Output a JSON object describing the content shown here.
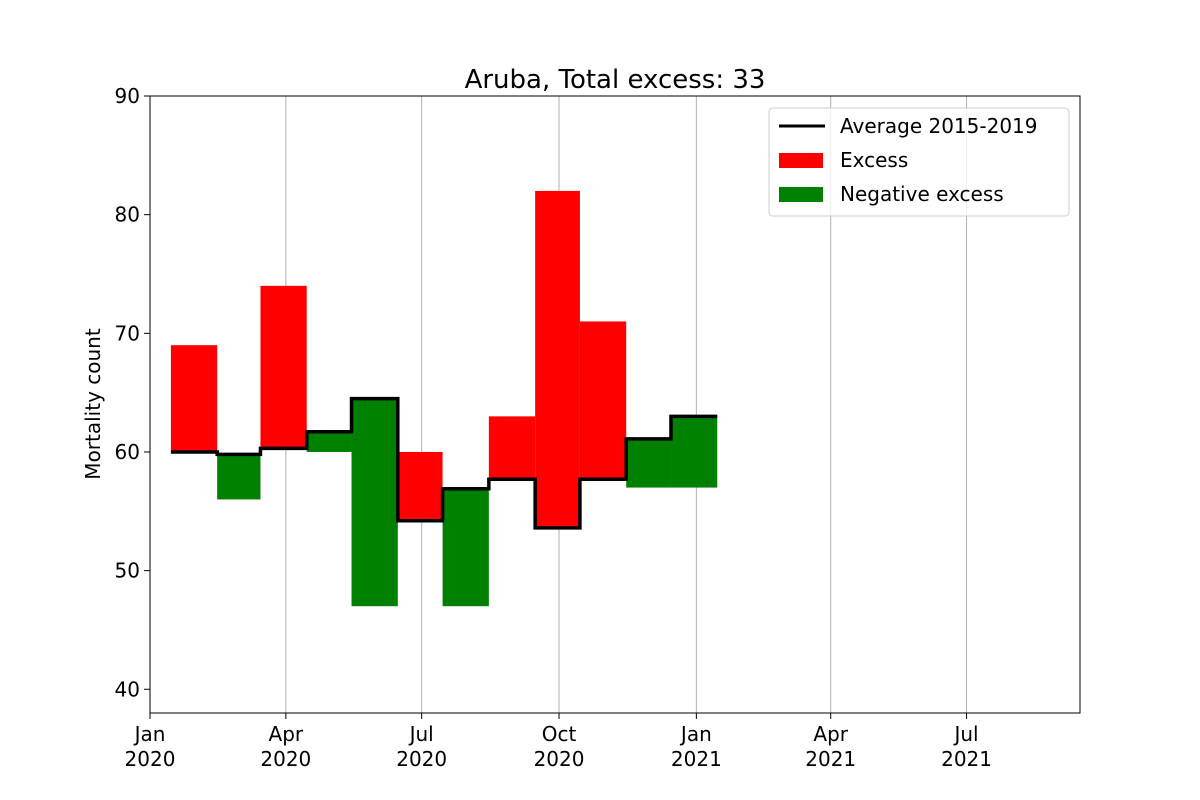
{
  "chart_data": {
    "type": "area",
    "title": "Aruba, Total excess: 33",
    "xlabel": "",
    "ylabel": "Mortality count",
    "ylim": [
      38,
      90
    ],
    "yticks": [
      40,
      50,
      60,
      70,
      80,
      90
    ],
    "xlim": [
      "2020-01-01",
      "2021-09-15"
    ],
    "xticks": [
      {
        "date": "2020-01-01",
        "label": [
          "Jan",
          "2020"
        ]
      },
      {
        "date": "2020-04-01",
        "label": [
          "Apr",
          "2020"
        ]
      },
      {
        "date": "2020-07-01",
        "label": [
          "Jul",
          "2020"
        ]
      },
      {
        "date": "2020-10-01",
        "label": [
          "Oct",
          "2020"
        ]
      },
      {
        "date": "2021-01-01",
        "label": [
          "Jan",
          "2021"
        ]
      },
      {
        "date": "2021-04-01",
        "label": [
          "Apr",
          "2021"
        ]
      },
      {
        "date": "2021-07-01",
        "label": [
          "Jul",
          "2021"
        ]
      }
    ],
    "grid": "x",
    "legend_position": "top-right",
    "months": [
      {
        "start": "2020-01-15",
        "end": "2020-02-15",
        "average": 60.0,
        "actual": 69
      },
      {
        "start": "2020-02-15",
        "end": "2020-03-15",
        "average": 59.8,
        "actual": 56
      },
      {
        "start": "2020-03-15",
        "end": "2020-04-15",
        "average": 60.3,
        "actual": 74
      },
      {
        "start": "2020-04-15",
        "end": "2020-05-15",
        "average": 61.7,
        "actual": 60
      },
      {
        "start": "2020-05-15",
        "end": "2020-06-15",
        "average": 64.5,
        "actual": 47
      },
      {
        "start": "2020-06-15",
        "end": "2020-07-15",
        "average": 54.2,
        "actual": 60
      },
      {
        "start": "2020-07-15",
        "end": "2020-08-15",
        "average": 56.9,
        "actual": 47
      },
      {
        "start": "2020-08-15",
        "end": "2020-09-15",
        "average": 57.7,
        "actual": 63
      },
      {
        "start": "2020-09-15",
        "end": "2020-10-15",
        "average": 53.6,
        "actual": 82
      },
      {
        "start": "2020-10-15",
        "end": "2020-11-15",
        "average": 57.7,
        "actual": 71
      },
      {
        "start": "2020-11-15",
        "end": "2020-12-15",
        "average": 61.1,
        "actual": 57
      },
      {
        "start": "2020-12-15",
        "end": "2021-01-15",
        "average": 63.0,
        "actual": 57
      }
    ],
    "series": [
      {
        "name": "Average 2015-2019",
        "kind": "step-line",
        "color": "#000000"
      },
      {
        "name": "Excess",
        "kind": "fill",
        "color": "#ff0000"
      },
      {
        "name": "Negative excess",
        "kind": "fill",
        "color": "#008000"
      }
    ]
  }
}
